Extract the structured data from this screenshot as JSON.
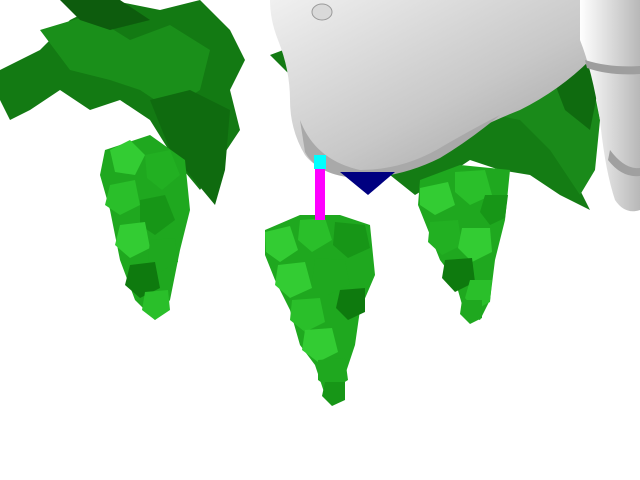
{
  "scene": {
    "title": "",
    "background": "#ffffff",
    "elements": {
      "gripper": "robot-gripper-end-effector",
      "left_cluster": "grape-cluster-left",
      "center_cluster": "grape-cluster-center",
      "right_cluster": "grape-cluster-right",
      "leaves": "vine-leaves"
    }
  },
  "colors": {
    "leaf_light": "#1a8a1a",
    "leaf_dark": "#0d5c0d",
    "grape_light": "#33cc33",
    "grape_mid": "#1fa81f",
    "grape_dark": "#0e7a0e",
    "gripper_light": "#e6e6e6",
    "gripper_mid": "#bdbdbd",
    "gripper_dark": "#8a8a8a",
    "marker_magenta": "#ff00ff",
    "marker_cyan": "#00ffff",
    "marker_navy": "#000080"
  }
}
